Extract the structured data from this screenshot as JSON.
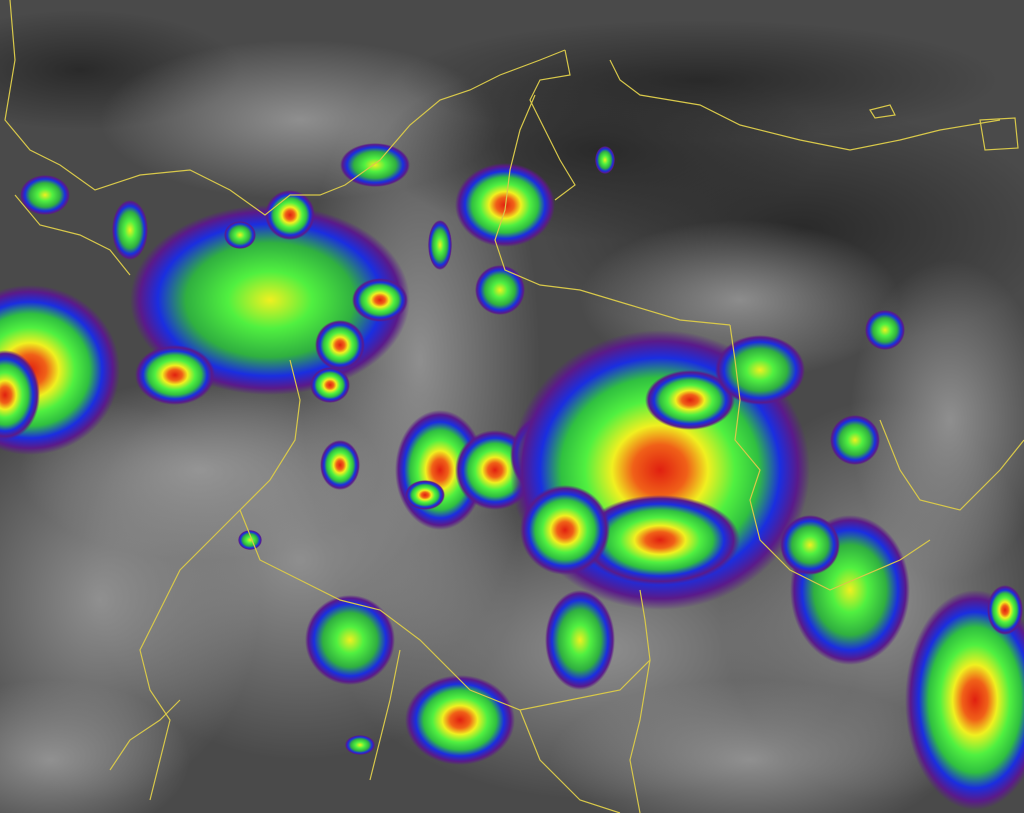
{
  "image": {
    "type": "infrared satellite imagery",
    "colors": {
      "background_dark": "#2e2e2e",
      "background_mid": "#5a5a5a",
      "cloud_light": "#9a9a9a",
      "border_line": "#d8c84a",
      "enhancement_purple": "#5a1a8a",
      "enhancement_blue": "#1a2ee0",
      "enhancement_green": "#3cf03c",
      "enhancement_yellow": "#f0f020",
      "enhancement_red": "#e02010"
    }
  }
}
